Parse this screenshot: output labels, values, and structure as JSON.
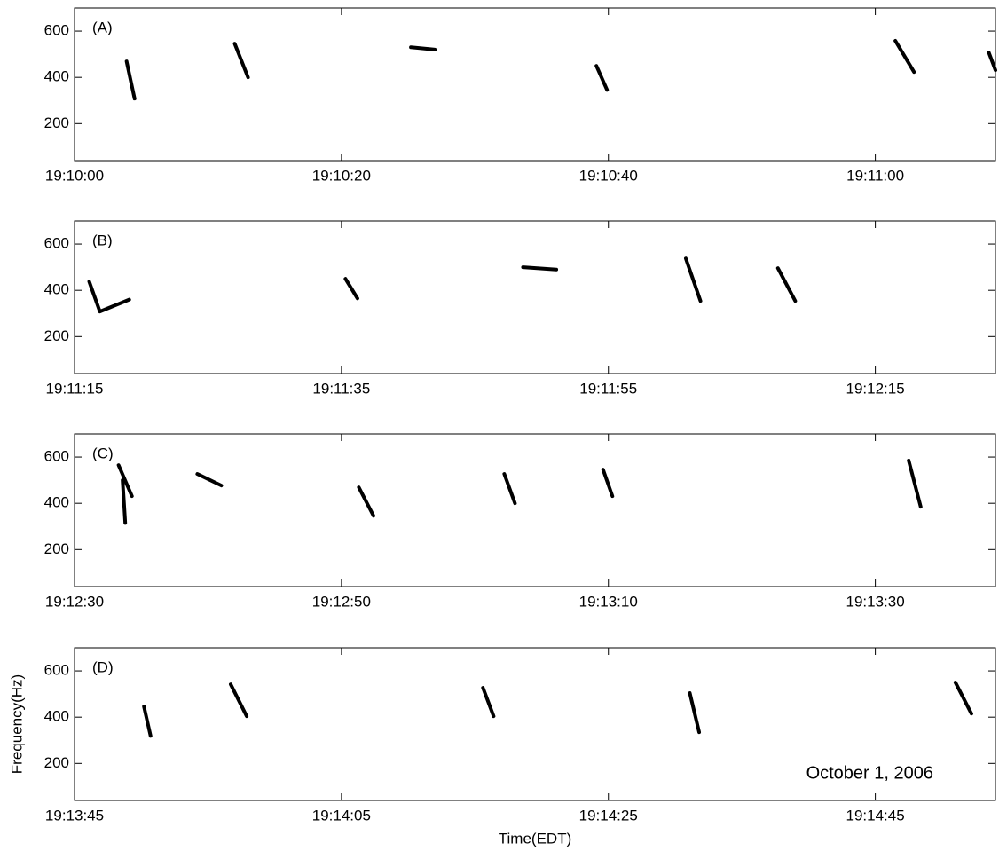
{
  "chart_data": [
    {
      "type": "spectrogram",
      "panel_label": "(A)",
      "xlim": [
        0,
        69
      ],
      "ylim": [
        40,
        700
      ],
      "xticks": [
        {
          "value": 0,
          "label": "19:10:00"
        },
        {
          "value": 20,
          "label": "19:10:20"
        },
        {
          "value": 40,
          "label": "19:10:40"
        },
        {
          "value": 60,
          "label": "19:11:00"
        }
      ],
      "yticks": [
        200,
        400,
        600
      ],
      "traces": [
        {
          "x": [
            3.9,
            4.5
          ],
          "y": [
            469,
            308
          ]
        },
        {
          "x": [
            12.0,
            13.0
          ],
          "y": [
            546,
            400
          ]
        },
        {
          "x": [
            25.2,
            27.0
          ],
          "y": [
            530,
            520
          ]
        },
        {
          "x": [
            39.1,
            39.9
          ],
          "y": [
            450,
            346
          ]
        },
        {
          "x": [
            61.5,
            62.9
          ],
          "y": [
            558,
            423
          ]
        },
        {
          "x": [
            68.5,
            69.0
          ],
          "y": [
            508,
            431
          ]
        }
      ]
    },
    {
      "type": "spectrogram",
      "panel_label": "(B)",
      "xlim": [
        0,
        69
      ],
      "ylim": [
        40,
        700
      ],
      "xticks": [
        {
          "value": 0,
          "label": "19:11:15"
        },
        {
          "value": 20,
          "label": "19:11:35"
        },
        {
          "value": 40,
          "label": "19:11:55"
        },
        {
          "value": 60,
          "label": "19:12:15"
        }
      ],
      "yticks": [
        200,
        400,
        600
      ],
      "traces": [
        {
          "x": [
            1.1,
            1.9,
            4.1
          ],
          "y": [
            438,
            308,
            360
          ]
        },
        {
          "x": [
            20.3,
            21.2
          ],
          "y": [
            450,
            365
          ]
        },
        {
          "x": [
            33.6,
            36.1
          ],
          "y": [
            500,
            490
          ]
        },
        {
          "x": [
            45.8,
            46.9
          ],
          "y": [
            538,
            354
          ]
        },
        {
          "x": [
            52.7,
            54.0
          ],
          "y": [
            496,
            354
          ]
        }
      ]
    },
    {
      "type": "spectrogram",
      "panel_label": "(C)",
      "xlim": [
        0,
        69
      ],
      "ylim": [
        40,
        700
      ],
      "xticks": [
        {
          "value": 0,
          "label": "19:12:30"
        },
        {
          "value": 20,
          "label": "19:12:50"
        },
        {
          "value": 40,
          "label": "19:13:10"
        },
        {
          "value": 60,
          "label": "19:13:30"
        }
      ],
      "yticks": [
        200,
        400,
        600
      ],
      "traces": [
        {
          "x": [
            3.3,
            4.3
          ],
          "y": [
            565,
            431
          ]
        },
        {
          "x": [
            3.6,
            3.8
          ],
          "y": [
            500,
            315
          ]
        },
        {
          "x": [
            9.2,
            11.0
          ],
          "y": [
            527,
            477
          ]
        },
        {
          "x": [
            21.3,
            22.4
          ],
          "y": [
            469,
            346
          ]
        },
        {
          "x": [
            32.2,
            33.0
          ],
          "y": [
            527,
            400
          ]
        },
        {
          "x": [
            39.6,
            40.3
          ],
          "y": [
            546,
            431
          ]
        },
        {
          "x": [
            62.5,
            63.4
          ],
          "y": [
            585,
            385
          ]
        }
      ]
    },
    {
      "type": "spectrogram",
      "panel_label": "(D)",
      "xlim": [
        0,
        69
      ],
      "ylim": [
        40,
        700
      ],
      "xticks": [
        {
          "value": 0,
          "label": "19:13:45"
        },
        {
          "value": 20,
          "label": "19:14:05"
        },
        {
          "value": 40,
          "label": "19:14:25"
        },
        {
          "value": 60,
          "label": "19:14:45"
        }
      ],
      "yticks": [
        200,
        400,
        600
      ],
      "ylabel": "Frequency(Hz)",
      "xlabel": "Time(EDT)",
      "annotation": "October 1, 2006",
      "traces": [
        {
          "x": [
            5.2,
            5.7
          ],
          "y": [
            446,
            319
          ]
        },
        {
          "x": [
            11.7,
            12.9
          ],
          "y": [
            542,
            404
          ]
        },
        {
          "x": [
            30.6,
            31.4
          ],
          "y": [
            527,
            404
          ]
        },
        {
          "x": [
            46.1,
            46.8
          ],
          "y": [
            504,
            335
          ]
        },
        {
          "x": [
            66.0,
            67.2
          ],
          "y": [
            550,
            415
          ]
        }
      ]
    }
  ]
}
